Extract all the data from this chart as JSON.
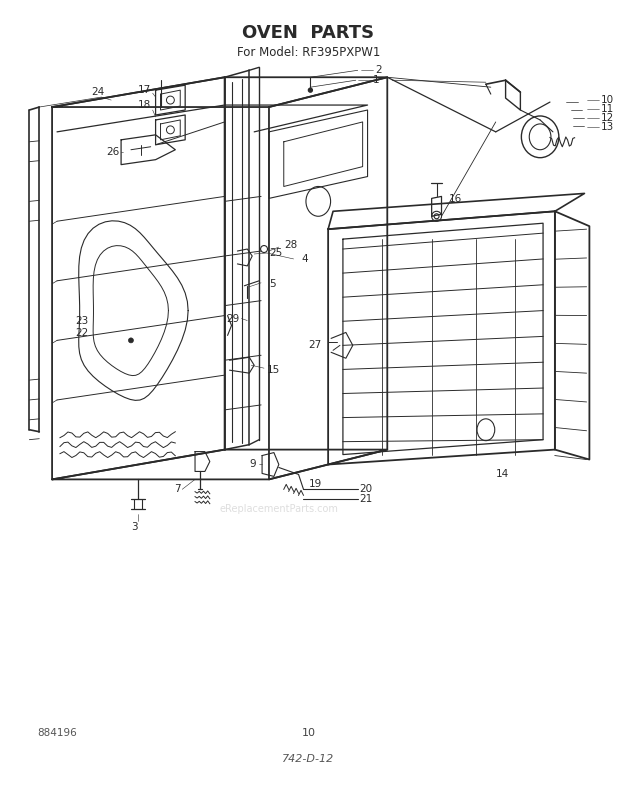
{
  "title": "OVEN  PARTS",
  "subtitle": "For Model: RF395PXPW1",
  "page_num": "10",
  "part_num": "884196",
  "drawing_num": "742-D-12",
  "bg_color": "#ffffff",
  "line_color": "#2a2a2a",
  "title_fontsize": 13,
  "subtitle_fontsize": 8.5,
  "figwidth": 6.2,
  "figheight": 7.88,
  "dpi": 100
}
